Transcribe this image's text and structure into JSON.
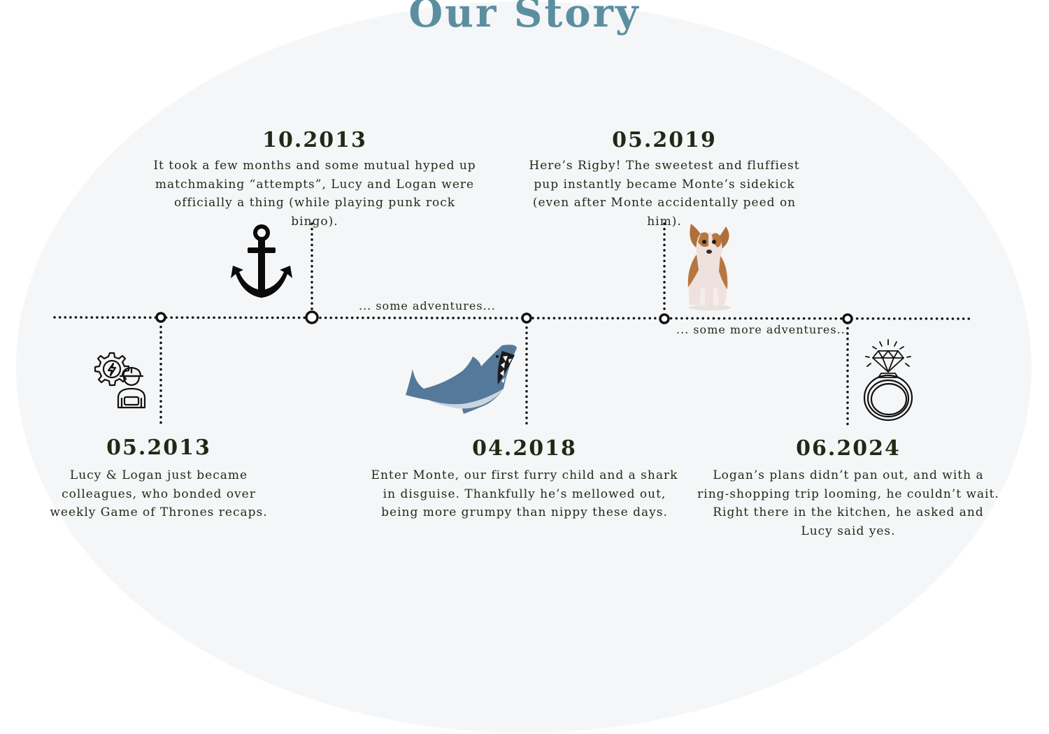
{
  "title": "Our Story",
  "colors": {
    "title": "#5b8fa0",
    "text": "#1f2a16",
    "dots": "#111111",
    "background_ellipse": "#f5f6f7"
  },
  "events": [
    {
      "date": "05.2013",
      "text": "Lucy & Logan just became colleagues, who bonded over weekly Game of Thrones recaps.",
      "icon": "engineer-gear-icon"
    },
    {
      "date": "10.2013",
      "text": "It took a few months and some mutual hyped up matchmaking “attempts”, Lucy and Logan were officially a thing (while playing punk rock bingo).",
      "icon": "anchor-icon"
    },
    {
      "date": "04.2018",
      "text": "Enter Monte, our first furry child and a shark in disguise. Thankfully he’s mellowed out, being more grumpy than nippy these days.",
      "icon": "shark-icon"
    },
    {
      "date": "05.2019",
      "text": "Here’s Rigby! The sweetest and fluffiest pup instantly became Monte’s sidekick (even after Monte accidentally peed on him).",
      "icon": "dog-icon"
    },
    {
      "date": "06.2024",
      "text": "Logan’s plans didn’t pan out, and with a ring-shopping trip looming, he couldn’t wait. Right there in the kitchen, he asked and Lucy said yes.",
      "icon": "ring-icon"
    }
  ],
  "interludes": [
    "... some adventures...",
    "... some more adventures..."
  ]
}
